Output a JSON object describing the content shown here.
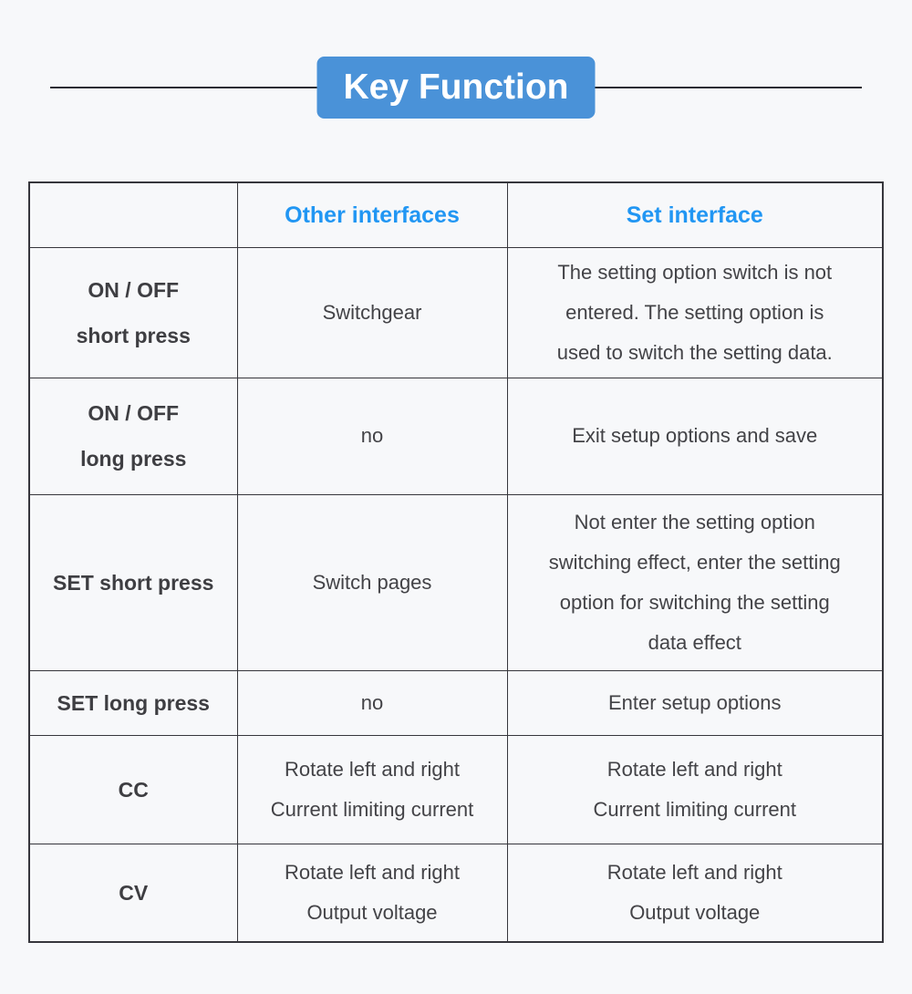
{
  "header": {
    "banner_label": "Key Function"
  },
  "table": {
    "columns": {
      "key": "",
      "other": "Other interfaces",
      "set": "Set interface"
    },
    "rows": [
      {
        "key": "ON / OFF\nshort press",
        "other": "Switchgear",
        "set": "The setting option switch is not\nentered. The setting option is\nused to switch the setting data."
      },
      {
        "key": "ON / OFF\nlong press",
        "other": "no",
        "set": "Exit setup options and save"
      },
      {
        "key": "SET short press",
        "other": "Switch pages",
        "set": "Not enter the setting option\nswitching effect, enter the setting\noption for switching the setting\ndata effect"
      },
      {
        "key": "SET long press",
        "other": "no",
        "set": "Enter setup options"
      },
      {
        "key": "CC",
        "other": "Rotate left and right\nCurrent limiting current",
        "set": "Rotate left and right\nCurrent limiting current"
      },
      {
        "key": "CV",
        "other": "Rotate left and right\nOutput voltage",
        "set": "Rotate left and right\nOutput voltage"
      }
    ]
  },
  "colors": {
    "page_bg": "#f7f8fa",
    "banner_bg": "#4a92d8",
    "banner_text": "#ffffff",
    "header_text": "#2196f3",
    "body_text": "#434347",
    "border": "#36363c",
    "rule": "#2c2c34"
  }
}
